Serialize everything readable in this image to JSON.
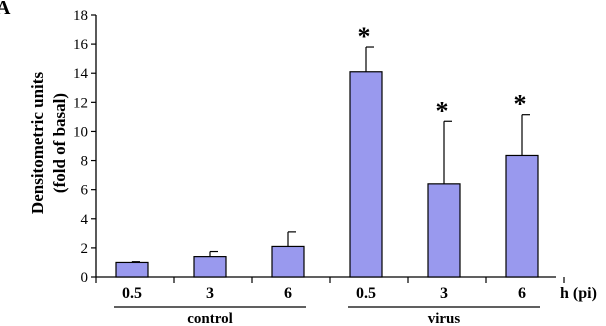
{
  "panel_letter": "A",
  "chart_data": {
    "type": "bar",
    "ylabel_lines": [
      "Densitometric units",
      "(fold of basal)"
    ],
    "xlabel": "h (pi)",
    "ylim": [
      0,
      18
    ],
    "yticks": [
      0,
      2,
      4,
      6,
      8,
      10,
      12,
      14,
      16,
      18
    ],
    "grid": false,
    "bar_color": "#9999ee",
    "categories": [
      "0.5",
      "3",
      "6",
      "0.5",
      "3",
      "6"
    ],
    "groups": [
      {
        "label": "control",
        "indices": [
          0,
          1,
          2
        ]
      },
      {
        "label": "virus",
        "indices": [
          3,
          4,
          5
        ]
      }
    ],
    "values": [
      1.0,
      1.4,
      2.1,
      14.1,
      6.4,
      8.35
    ],
    "errors": [
      0.05,
      0.35,
      1.0,
      1.7,
      4.3,
      2.8
    ],
    "significance": [
      "",
      "",
      "",
      "*",
      "*",
      "*"
    ]
  }
}
